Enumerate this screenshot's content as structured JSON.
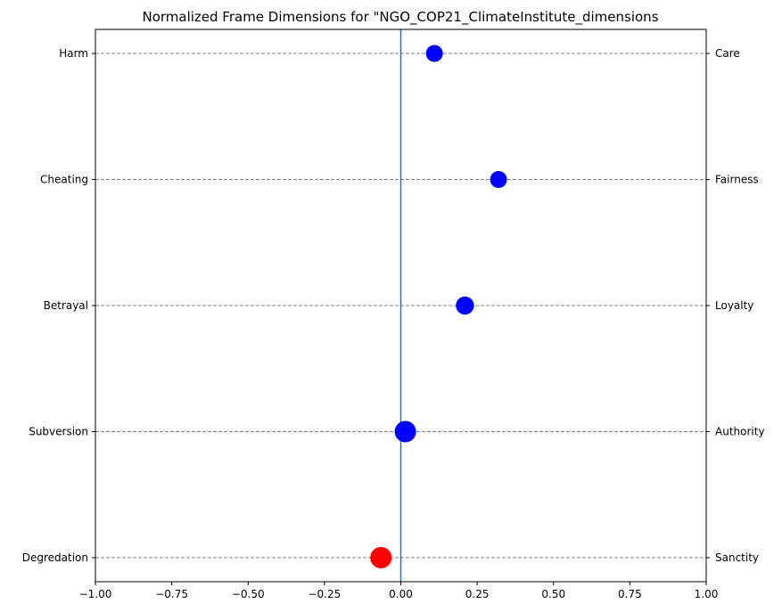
{
  "chart_data": {
    "type": "scatter",
    "title": "Normalized Frame Dimensions for \"NGO_COP21_ClimateInstitute_dimensions",
    "xlim": [
      -1.0,
      1.0
    ],
    "x_ticks": [
      "−1.00",
      "−0.75",
      "−0.50",
      "−0.25",
      "0.00",
      "0.25",
      "0.50",
      "0.75",
      "1.00"
    ],
    "x_tick_values": [
      -1.0,
      -0.75,
      -0.5,
      -0.25,
      0.0,
      0.25,
      0.5,
      0.75,
      1.0
    ],
    "left_labels": [
      "Harm",
      "Cheating",
      "Betrayal",
      "Subversion",
      "Degredation"
    ],
    "right_labels": [
      "Care",
      "Fairness",
      "Loyalty",
      "Authority",
      "Sanctity"
    ],
    "values": [
      0.11,
      0.32,
      0.21,
      0.015,
      -0.065
    ],
    "marker_area": [
      1,
      1,
      1.15,
      1.6,
      1.6
    ],
    "positive_color": "#0000ff",
    "negative_color": "#ff0000",
    "center_line_color": "#1f77b4",
    "grid": "horizontal dashed"
  }
}
